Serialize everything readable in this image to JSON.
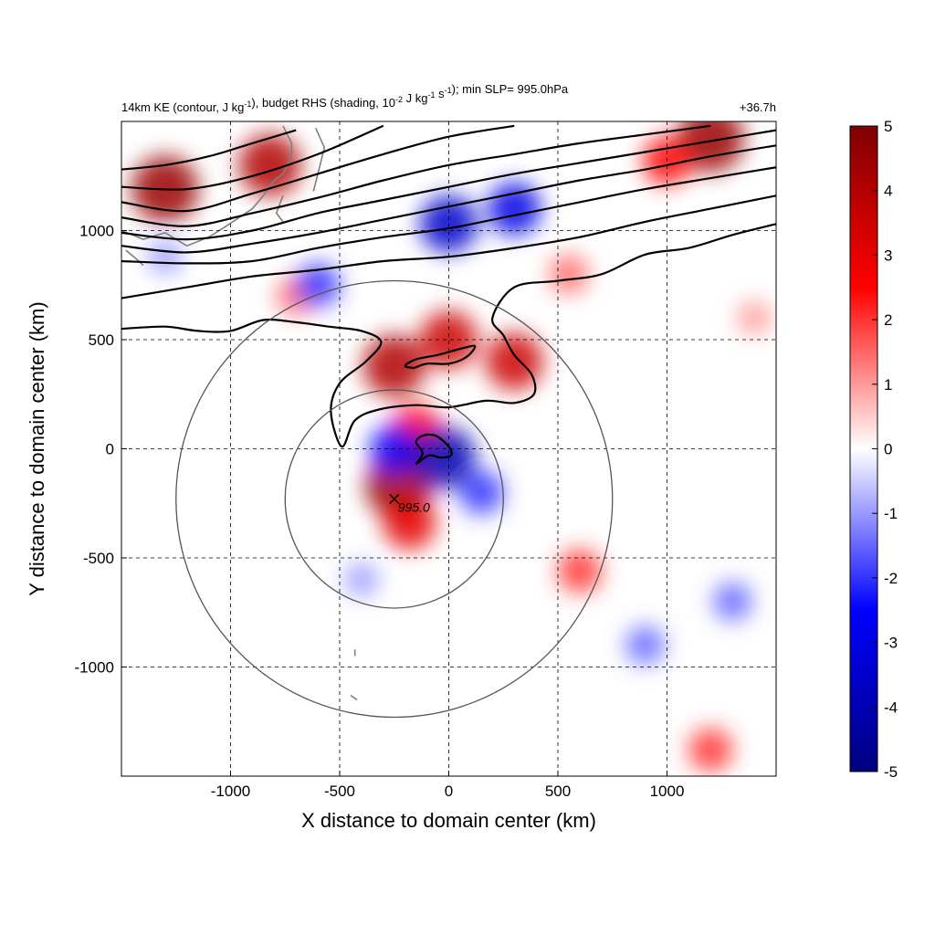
{
  "chart_data": {
    "type": "heatmap",
    "title": "14km KE (contour, J kg⁻¹), budget RHS (shading, 10⁻² J kg⁻¹ s⁻¹); min SLP= 995.0hPa",
    "time_label": "+36.7h",
    "xlabel": "X distance to domain center (km)",
    "ylabel": "Y distance to domain center (km)",
    "xlim": [
      -1500,
      1500
    ],
    "ylim": [
      -1500,
      1500
    ],
    "x_ticks": [
      -1000,
      -500,
      0,
      500,
      1000
    ],
    "y_ticks": [
      -1000,
      -500,
      0,
      500,
      1000
    ],
    "x_tick_labels": [
      "-1000",
      "-500",
      "0",
      "500",
      "1000"
    ],
    "y_tick_labels": [
      "-1000",
      "-500",
      "0",
      "500",
      "1000"
    ],
    "grid": "dashed",
    "colorbar": {
      "range": [
        -5,
        5
      ],
      "ticks": [
        5,
        4,
        3,
        2,
        1,
        0,
        -1,
        -2,
        -3,
        -4,
        -5
      ],
      "tick_labels": [
        "5",
        "4",
        "3",
        "2",
        "1",
        "0",
        "-1",
        "-2",
        "-3",
        "-4",
        "-5"
      ],
      "colors": [
        "#00007f",
        "#0000ff",
        "#ffffff",
        "#ff0000",
        "#7f0000"
      ]
    },
    "center": {
      "x": -250,
      "y": -230,
      "label": "995.0",
      "marker": "x"
    },
    "range_rings_km": [
      500,
      1000
    ],
    "shading_features": [
      {
        "x": -1300,
        "y": 1190,
        "value": 4.5
      },
      {
        "x": -820,
        "y": 1300,
        "value": 4.0
      },
      {
        "x": 1200,
        "y": 1420,
        "value": 4.5
      },
      {
        "x": 1000,
        "y": 1320,
        "value": 2.5
      },
      {
        "x": -250,
        "y": 380,
        "value": 4.0
      },
      {
        "x": 0,
        "y": 500,
        "value": 3.5
      },
      {
        "x": 300,
        "y": 400,
        "value": 3.5
      },
      {
        "x": -150,
        "y": 90,
        "value": 2.5
      },
      {
        "x": -230,
        "y": -170,
        "value": 4.5
      },
      {
        "x": -180,
        "y": -340,
        "value": 3.0
      },
      {
        "x": 600,
        "y": -560,
        "value": 2.0
      },
      {
        "x": 550,
        "y": 800,
        "value": 1.5
      },
      {
        "x": -700,
        "y": 700,
        "value": 1.5
      },
      {
        "x": 1400,
        "y": 600,
        "value": 1.0
      },
      {
        "x": 1200,
        "y": -1380,
        "value": 2.0
      },
      {
        "x": 0,
        "y": 1030,
        "value": -3.5
      },
      {
        "x": 300,
        "y": 1100,
        "value": -3.0
      },
      {
        "x": -600,
        "y": 750,
        "value": -2.0
      },
      {
        "x": -20,
        "y": -40,
        "value": -4.0
      },
      {
        "x": -250,
        "y": 0,
        "value": -2.5
      },
      {
        "x": 150,
        "y": -200,
        "value": -2.0
      },
      {
        "x": -400,
        "y": -600,
        "value": -1.0
      },
      {
        "x": 900,
        "y": -900,
        "value": -1.5
      },
      {
        "x": 1300,
        "y": -700,
        "value": -1.5
      },
      {
        "x": -1300,
        "y": 880,
        "value": -1.0
      }
    ],
    "ke_contours": [
      [
        [
          -1500,
          1280
        ],
        [
          -1300,
          1300
        ],
        [
          -1100,
          1340
        ],
        [
          -900,
          1400
        ],
        [
          -700,
          1460
        ]
      ],
      [
        [
          -1500,
          1200
        ],
        [
          -1200,
          1190
        ],
        [
          -900,
          1250
        ],
        [
          -600,
          1350
        ],
        [
          -300,
          1480
        ]
      ],
      [
        [
          -1500,
          1130
        ],
        [
          -1200,
          1090
        ],
        [
          -900,
          1170
        ],
        [
          -600,
          1260
        ],
        [
          -300,
          1350
        ],
        [
          0,
          1430
        ],
        [
          300,
          1480
        ]
      ],
      [
        [
          -1500,
          1060
        ],
        [
          -1200,
          1020
        ],
        [
          -900,
          1080
        ],
        [
          -600,
          1150
        ],
        [
          -300,
          1230
        ],
        [
          0,
          1300
        ],
        [
          300,
          1350
        ],
        [
          600,
          1400
        ],
        [
          900,
          1440
        ],
        [
          1200,
          1480
        ]
      ],
      [
        [
          -1500,
          990
        ],
        [
          -1200,
          960
        ],
        [
          -900,
          1000
        ],
        [
          -600,
          1080
        ],
        [
          -300,
          1140
        ],
        [
          0,
          1200
        ],
        [
          300,
          1260
        ],
        [
          600,
          1310
        ],
        [
          900,
          1360
        ],
        [
          1200,
          1410
        ],
        [
          1500,
          1460
        ]
      ],
      [
        [
          -1500,
          930
        ],
        [
          -1200,
          900
        ],
        [
          -900,
          940
        ],
        [
          -600,
          990
        ],
        [
          -300,
          1050
        ],
        [
          0,
          1110
        ],
        [
          300,
          1170
        ],
        [
          600,
          1230
        ],
        [
          900,
          1280
        ],
        [
          1200,
          1340
        ],
        [
          1500,
          1390
        ]
      ],
      [
        [
          -1500,
          860
        ],
        [
          -1200,
          850
        ],
        [
          -900,
          860
        ],
        [
          -600,
          920
        ],
        [
          -300,
          970
        ],
        [
          0,
          1010
        ],
        [
          300,
          1070
        ],
        [
          600,
          1130
        ],
        [
          900,
          1190
        ],
        [
          1200,
          1240
        ],
        [
          1500,
          1290
        ]
      ],
      [
        [
          -1500,
          690
        ],
        [
          -1200,
          740
        ],
        [
          -900,
          790
        ],
        [
          -600,
          820
        ],
        [
          -300,
          860
        ],
        [
          0,
          880
        ],
        [
          300,
          920
        ],
        [
          600,
          970
        ],
        [
          900,
          1040
        ],
        [
          1200,
          1100
        ],
        [
          1500,
          1160
        ]
      ],
      [
        [
          -1500,
          550
        ],
        [
          -1300,
          560
        ],
        [
          -1150,
          540
        ],
        [
          -1000,
          540
        ],
        [
          -850,
          590
        ],
        [
          -700,
          580
        ],
        [
          -550,
          560
        ],
        [
          -400,
          540
        ],
        [
          -310,
          490
        ],
        [
          -380,
          400
        ],
        [
          -500,
          300
        ],
        [
          -540,
          170
        ],
        [
          -490,
          10
        ],
        [
          -430,
          130
        ],
        [
          -320,
          180
        ],
        [
          -150,
          200
        ],
        [
          0,
          190
        ],
        [
          170,
          220
        ],
        [
          300,
          210
        ],
        [
          390,
          250
        ],
        [
          380,
          340
        ],
        [
          300,
          430
        ],
        [
          250,
          520
        ],
        [
          200,
          600
        ],
        [
          300,
          740
        ],
        [
          500,
          770
        ],
        [
          700,
          800
        ],
        [
          900,
          890
        ],
        [
          1100,
          920
        ],
        [
          1300,
          980
        ],
        [
          1500,
          1030
        ]
      ],
      [
        [
          -160,
          370
        ],
        [
          -100,
          390
        ],
        [
          0,
          390
        ],
        [
          80,
          420
        ],
        [
          120,
          470
        ],
        [
          60,
          460
        ],
        [
          -50,
          430
        ],
        [
          -150,
          410
        ],
        [
          -200,
          380
        ],
        [
          -160,
          370
        ]
      ],
      [
        [
          -150,
          -70
        ],
        [
          -120,
          -20
        ],
        [
          -150,
          30
        ],
        [
          -120,
          60
        ],
        [
          -60,
          60
        ],
        [
          0,
          10
        ],
        [
          10,
          -30
        ],
        [
          -40,
          -40
        ],
        [
          -90,
          -30
        ],
        [
          -150,
          -70
        ]
      ]
    ],
    "coastline_segments": [
      [
        [
          -1500,
          1000
        ],
        [
          -1400,
          960
        ],
        [
          -1300,
          990
        ],
        [
          -1200,
          930
        ],
        [
          -1100,
          970
        ],
        [
          -1020,
          1020
        ],
        [
          -900,
          1100
        ],
        [
          -850,
          1160
        ],
        [
          -800,
          1230
        ],
        [
          -760,
          1260
        ],
        [
          -720,
          1340
        ],
        [
          -720,
          1400
        ],
        [
          -760,
          1480
        ]
      ],
      [
        [
          -1480,
          910
        ],
        [
          -1420,
          860
        ],
        [
          -1400,
          840
        ]
      ],
      [
        [
          -620,
          1180
        ],
        [
          -590,
          1300
        ],
        [
          -570,
          1380
        ],
        [
          -610,
          1470
        ]
      ],
      [
        [
          -760,
          1160
        ],
        [
          -790,
          1080
        ],
        [
          -760,
          1040
        ]
      ],
      [
        [
          -450,
          -1130
        ],
        [
          -420,
          -1150
        ]
      ],
      [
        [
          -430,
          -920
        ],
        [
          -430,
          -950
        ]
      ]
    ]
  }
}
